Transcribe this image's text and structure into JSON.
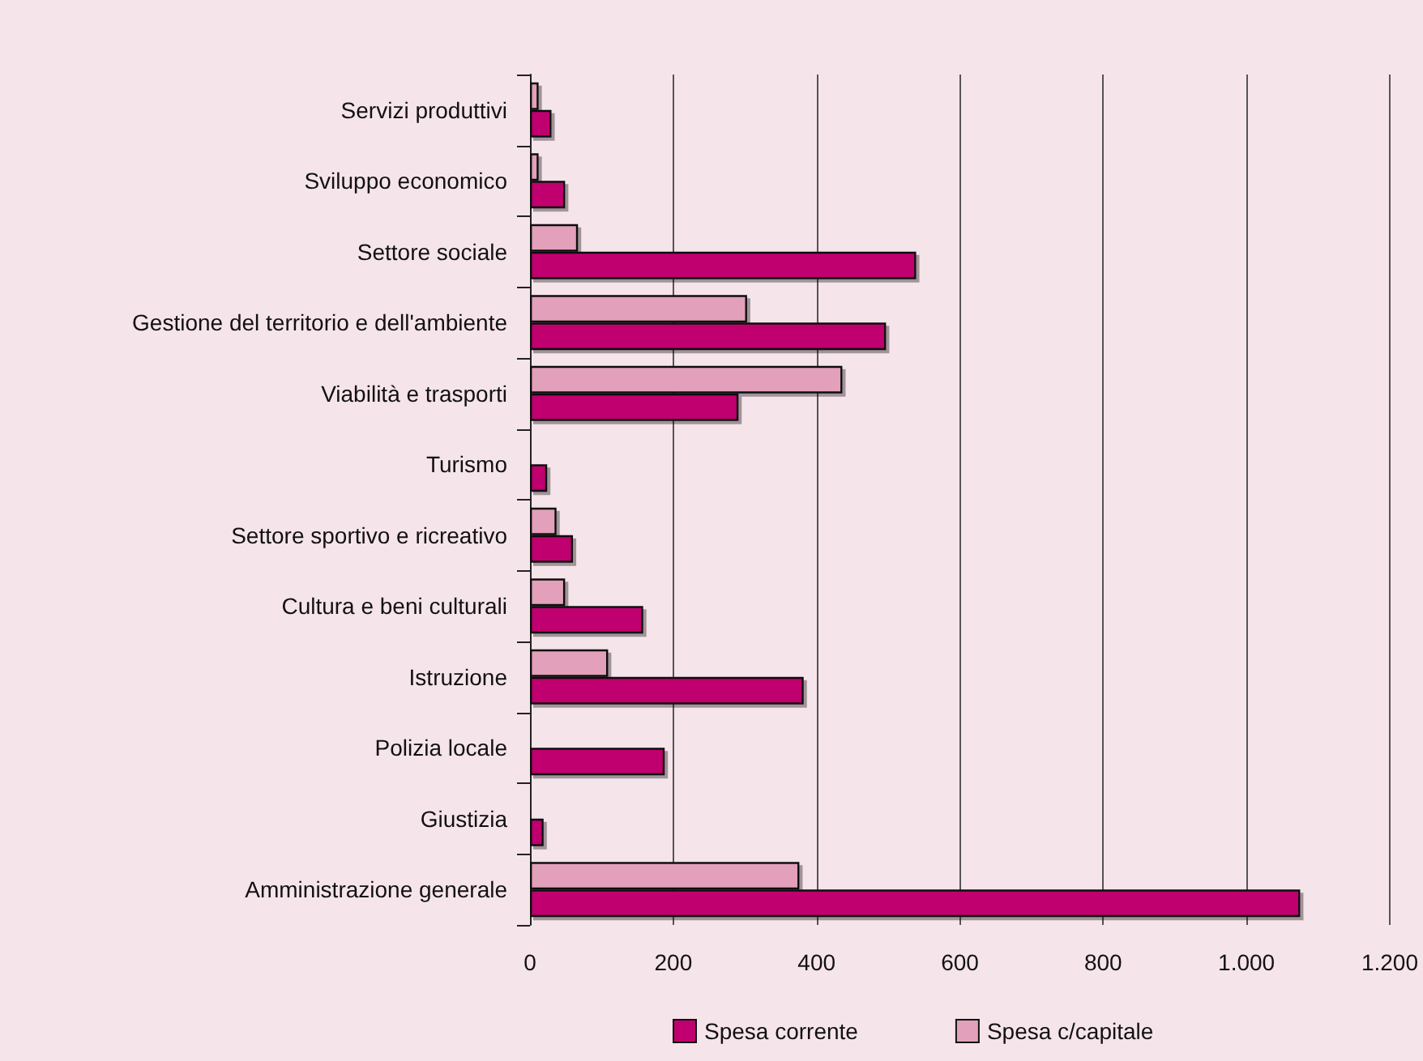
{
  "chart_data": {
    "type": "bar",
    "orientation": "horizontal",
    "categories": [
      "Servizi produttivi",
      "Sviluppo economico",
      "Settore sociale",
      "Gestione del territorio e dell'ambiente",
      "Viabilità e trasporti",
      "Turismo",
      "Settore sportivo e ricreativo",
      "Cultura e beni culturali",
      "Istruzione",
      "Polizia locale",
      "Giustizia",
      "Amministrazione generale"
    ],
    "series": [
      {
        "name": "Spesa corrente",
        "color": "#c0006e",
        "values": [
          30,
          49,
          539,
          497,
          291,
          24,
          60,
          158,
          382,
          188,
          19,
          1075
        ]
      },
      {
        "name": "Spesa c/capitale",
        "color": "#e2a0ba",
        "values": [
          12,
          12,
          67,
          303,
          436,
          null,
          37,
          49,
          109,
          null,
          null,
          376
        ]
      }
    ],
    "xlim": [
      0,
      1200
    ],
    "xticks": [
      {
        "value": 0,
        "label": "0"
      },
      {
        "value": 200,
        "label": "200"
      },
      {
        "value": 400,
        "label": "400"
      },
      {
        "value": 600,
        "label": "600"
      },
      {
        "value": 800,
        "label": "800"
      },
      {
        "value": 1000,
        "label": "1.000"
      },
      {
        "value": 1200,
        "label": "1.200"
      }
    ],
    "grid": "x",
    "legend": "bottom"
  }
}
